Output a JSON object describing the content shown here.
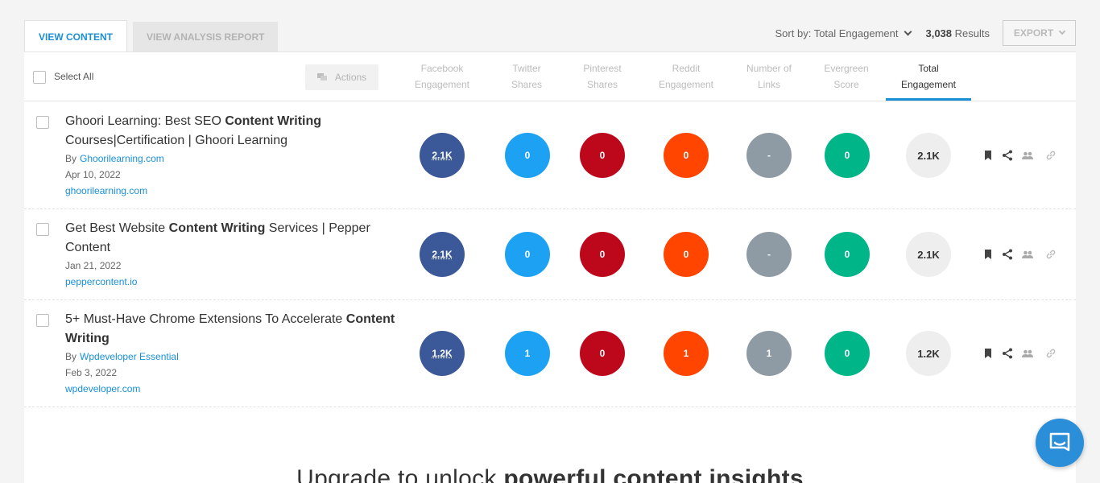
{
  "tabs": {
    "view_content": "VIEW CONTENT",
    "view_analysis": "VIEW ANALYSIS REPORT"
  },
  "sort": {
    "label": "Sort by: Total Engagement",
    "results_count": "3,038",
    "results_word": " Results",
    "export": "EXPORT"
  },
  "toolbar": {
    "select_all": "Select All",
    "actions": "Actions"
  },
  "columns": [
    {
      "line1": "Facebook",
      "line2": "Engagement"
    },
    {
      "line1": "Twitter",
      "line2": "Shares"
    },
    {
      "line1": "Pinterest",
      "line2": "Shares"
    },
    {
      "line1": "Reddit",
      "line2": "Engagement"
    },
    {
      "line1": "Number of",
      "line2": "Links"
    },
    {
      "line1": "Evergreen",
      "line2": "Score"
    },
    {
      "line1": "Total",
      "line2": "Engagement"
    }
  ],
  "rows": [
    {
      "title_a": "Ghoori Learning: Best SEO ",
      "title_b": "Content Writing",
      "title_c": " Courses|Certification | Ghoori Learning",
      "by": "By",
      "author": "Ghoorilearning.com",
      "date": "Apr 10, 2022",
      "domain": "ghoorilearning.com",
      "facebook": "2.1K",
      "twitter": "0",
      "pinterest": "0",
      "reddit": "0",
      "links": "-",
      "evergreen": "0",
      "total": "2.1K"
    },
    {
      "title_a": "Get Best Website ",
      "title_b": "Content Writing",
      "title_c": " Services | Pepper Content",
      "date": "Jan 21, 2022",
      "domain": "peppercontent.io",
      "facebook": "2.1K",
      "twitter": "0",
      "pinterest": "0",
      "reddit": "0",
      "links": "-",
      "evergreen": "0",
      "total": "2.1K"
    },
    {
      "title_a": "5+ Must-Have Chrome Extensions To Accelerate ",
      "title_b": "Content Writing",
      "title_c": "",
      "by": "By",
      "author": "Wpdeveloper Essential",
      "date": "Feb 3, 2022",
      "domain": "wpdeveloper.com",
      "facebook": "1.2K",
      "twitter": "1",
      "pinterest": "0",
      "reddit": "1",
      "links": "1",
      "evergreen": "0",
      "total": "1.2K"
    }
  ],
  "upgrade": {
    "prefix": "Upgrade to unlock ",
    "bold": "powerful content insights"
  },
  "colors": {
    "accent": "#1a8fd6",
    "facebook": "#3b5998",
    "twitter": "#1da1f2",
    "pinterest": "#bd081c",
    "reddit": "#ff4500",
    "links": "#8e9ba5",
    "evergreen": "#00b588"
  }
}
